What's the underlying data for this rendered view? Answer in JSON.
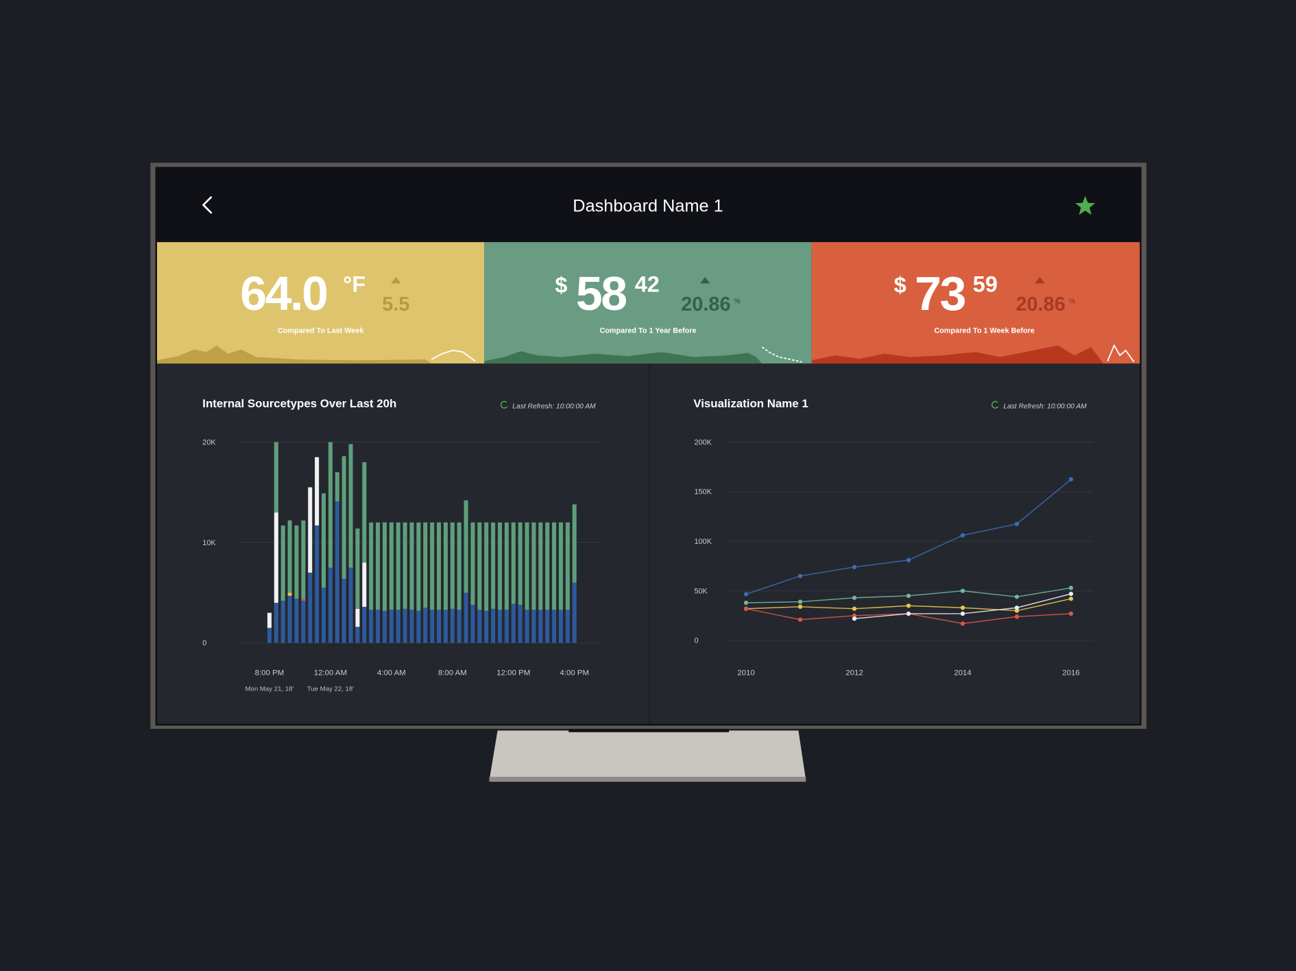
{
  "header": {
    "title": "Dashboard Name 1"
  },
  "kpis": [
    {
      "value": "64.0",
      "unit": "°F",
      "delta": "5.5",
      "caption": "Compared To Last Week"
    },
    {
      "prefix": "$",
      "value": "58",
      "decimals": "42",
      "delta": "20.86",
      "delta_unit": "%",
      "caption": "Compared To 1 Year Before"
    },
    {
      "prefix": "$",
      "value": "73",
      "decimals": "59",
      "delta": "20.86",
      "delta_unit": "%",
      "caption": "Compared To 1 Week Before"
    }
  ],
  "chart_data": [
    {
      "type": "bar",
      "title": "Internal Sourcetypes Over Last 20h",
      "last_refresh": "Last Refresh: 10:00:00 AM",
      "categories": [
        "8:00 PM",
        null,
        null,
        null,
        null,
        null,
        null,
        null,
        null,
        "12:00 AM",
        null,
        null,
        null,
        null,
        null,
        null,
        null,
        null,
        "4:00 AM",
        null,
        null,
        null,
        null,
        null,
        null,
        null,
        null,
        "8:00 AM",
        null,
        null,
        null,
        null,
        null,
        null,
        null,
        null,
        "12:00 PM",
        null,
        null,
        null,
        null,
        null,
        null,
        null,
        null,
        "4:00 PM"
      ],
      "date_labels": [
        "Mon May 21, 18'",
        null,
        null,
        null,
        null,
        null,
        null,
        null,
        null,
        "Tue May 22, 18'",
        null,
        null,
        null,
        null,
        null,
        null,
        null,
        null,
        null,
        null,
        null,
        null,
        null,
        null,
        null,
        null,
        null,
        null,
        null,
        null,
        null,
        null,
        null,
        null,
        null,
        null,
        null,
        null,
        null,
        null,
        null,
        null,
        null,
        null,
        null,
        null
      ],
      "series": [
        {
          "color": "#2d5a9c",
          "values": [
            1500,
            4000,
            4200,
            4700,
            4400,
            4200,
            7000,
            11700,
            5500,
            7500,
            14100,
            6400,
            7500,
            1600,
            3600,
            3300,
            3300,
            3200,
            3300,
            3300,
            3400,
            3300,
            3200,
            3500,
            3300,
            3300,
            3300,
            3400,
            3300,
            5000,
            3800,
            3300,
            3200,
            3400,
            3300,
            3300,
            3900,
            3800,
            3300,
            3300,
            3300,
            3300,
            3300,
            3300,
            3300,
            6000
          ]
        },
        {
          "color": "#f2f2f2",
          "values": [
            1500,
            9000,
            0,
            0,
            0,
            0,
            8500,
            6800,
            0,
            0,
            0,
            0,
            0,
            1800,
            4400,
            0,
            0,
            0,
            0,
            0,
            0,
            0,
            0,
            0,
            0,
            0,
            0,
            0,
            0,
            0,
            0,
            0,
            0,
            0,
            0,
            0,
            0,
            0,
            0,
            0,
            0,
            0,
            0,
            0,
            0,
            0
          ]
        },
        {
          "color": "#e8c84a",
          "values": [
            0,
            0,
            0,
            300,
            0,
            0,
            0,
            0,
            0,
            0,
            0,
            0,
            0,
            0,
            0,
            0,
            0,
            0,
            0,
            0,
            0,
            0,
            0,
            0,
            0,
            0,
            0,
            0,
            0,
            0,
            0,
            0,
            0,
            0,
            0,
            0,
            0,
            0,
            0,
            0,
            0,
            0,
            0,
            0,
            0,
            0
          ]
        },
        {
          "color": "#d9574a",
          "values": [
            0,
            0,
            0,
            0,
            0,
            200,
            0,
            0,
            0,
            0,
            0,
            0,
            0,
            0,
            0,
            0,
            0,
            0,
            0,
            0,
            0,
            0,
            0,
            0,
            0,
            0,
            0,
            0,
            0,
            0,
            0,
            0,
            0,
            0,
            0,
            0,
            0,
            0,
            0,
            0,
            0,
            0,
            0,
            0,
            0,
            0
          ]
        },
        {
          "color": "#5f9f7b",
          "values": [
            0,
            7000,
            7500,
            7200,
            7300,
            7800,
            0,
            0,
            9400,
            12500,
            2900,
            12200,
            12300,
            8000,
            10000,
            8700,
            8700,
            8800,
            8700,
            8700,
            8600,
            8700,
            8800,
            8500,
            8700,
            8700,
            8700,
            8600,
            8700,
            9200,
            8200,
            8700,
            8800,
            8600,
            8700,
            8700,
            8100,
            8200,
            8700,
            8700,
            8700,
            8700,
            8700,
            8700,
            8700,
            7800
          ]
        }
      ],
      "ylim": [
        0,
        20000
      ],
      "yticks": [
        0,
        {
          "value": 10000,
          "label": "10K"
        },
        {
          "value": 20000,
          "label": "20K"
        }
      ],
      "grid": true
    },
    {
      "type": "line",
      "title": "Visualization Name 1",
      "last_refresh": "Last Refresh: 10:00:00 AM",
      "x": [
        2010,
        2011,
        2012,
        2013,
        2014,
        2015,
        2016
      ],
      "series": [
        {
          "color": "#3b6fb6",
          "values": [
            46700,
            65000,
            74000,
            81000,
            106000,
            117500,
            162500
          ]
        },
        {
          "color": "#6fb79a",
          "values": [
            38000,
            39000,
            43000,
            45000,
            50000,
            44000,
            53000
          ]
        },
        {
          "color": "#e8c84a",
          "values": [
            32000,
            34000,
            32000,
            35000,
            33000,
            30000,
            42000
          ]
        },
        {
          "color": "#d9574a",
          "values": [
            32000,
            21000,
            25000,
            27000,
            17000,
            24000,
            27000
          ]
        },
        {
          "color": "#ececec",
          "values": [
            null,
            null,
            22000,
            27000,
            27000,
            33000,
            47000
          ]
        }
      ],
      "xlim": [
        2009.7,
        2016.4
      ],
      "xticks": [
        2010,
        2012,
        2014,
        2016
      ],
      "ylim": [
        0,
        200000
      ],
      "yticks": [
        0,
        {
          "value": 50000,
          "label": "50K"
        },
        {
          "value": 100000,
          "label": "100K"
        },
        {
          "value": 150000,
          "label": "150K"
        },
        {
          "value": 200000,
          "label": "200K"
        }
      ],
      "grid": true
    }
  ]
}
